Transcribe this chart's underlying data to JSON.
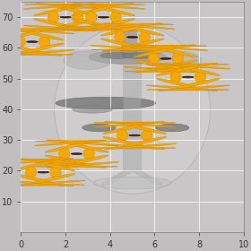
{
  "xlim": [
    0,
    10
  ],
  "ylim": [
    0,
    75
  ],
  "xticks": [
    0,
    2,
    4,
    6,
    8,
    10
  ],
  "yticks": [
    10,
    20,
    30,
    40,
    50,
    60,
    70
  ],
  "grid_color": "white",
  "grid_alpha": 0.75,
  "grid_linewidth": 0.7,
  "bg_color": "#c0bebe",
  "ax_bg_color": "#c8c6c6",
  "sunflower_points": [
    [
      2.0,
      70.0
    ],
    [
      3.7,
      70.0
    ],
    [
      0.5,
      62.0
    ],
    [
      5.0,
      63.5
    ],
    [
      6.5,
      56.5
    ],
    [
      7.5,
      50.5
    ],
    [
      5.1,
      31.5
    ],
    [
      2.5,
      25.5
    ],
    [
      1.0,
      19.5
    ]
  ],
  "tick_fontsize": 7,
  "petal_color": "#F5A800",
  "petal_edge_color": "#CC8800",
  "center_color": "#1a0800",
  "center_dot_color": "#ffffff",
  "organ_fill": "#888888",
  "organ_dark": "#555555",
  "organ_light": "#aaaaaa",
  "body_fill": "#b8b4b4",
  "heart_fill": "#777777",
  "spine_color": "#999999"
}
